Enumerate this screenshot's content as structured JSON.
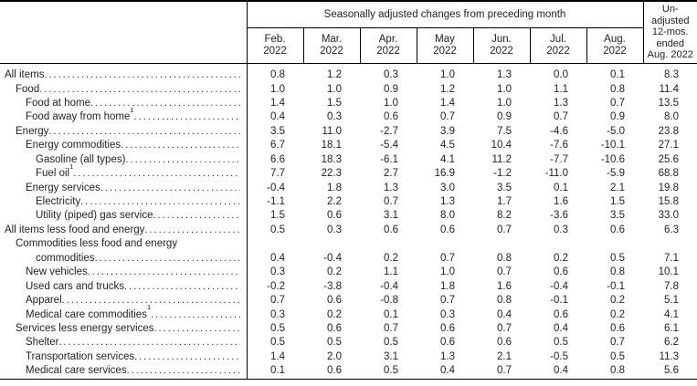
{
  "page": {
    "background": "#ffffff",
    "text_color": "#231f20",
    "border_color": "#000000"
  },
  "table": {
    "spanner_header": "Seasonally adjusted changes from preceding month",
    "month_columns": [
      {
        "month": "Feb.",
        "year": "2022"
      },
      {
        "month": "Mar.",
        "year": "2022"
      },
      {
        "month": "Apr.",
        "year": "2022"
      },
      {
        "month": "May",
        "year": "2022"
      },
      {
        "month": "Jun.",
        "year": "2022"
      },
      {
        "month": "Jul.",
        "year": "2022"
      },
      {
        "month": "Aug.",
        "year": "2022"
      }
    ],
    "unadjusted_header_lines": [
      "Un-",
      "adjusted",
      "12-mos.",
      "ended",
      "Aug. 2022"
    ],
    "rows": [
      {
        "label": "All items",
        "indent": 0,
        "values": [
          "0.8",
          "1.2",
          "0.3",
          "1.0",
          "1.3",
          "0.0",
          "0.1",
          "8.3"
        ]
      },
      {
        "label": "Food",
        "indent": 1,
        "values": [
          "1.0",
          "1.0",
          "0.9",
          "1.2",
          "1.0",
          "1.1",
          "0.8",
          "11.4"
        ]
      },
      {
        "label": "Food at home",
        "indent": 2,
        "values": [
          "1.4",
          "1.5",
          "1.0",
          "1.4",
          "1.0",
          "1.3",
          "0.7",
          "13.5"
        ]
      },
      {
        "label": "Food away from home",
        "footnote": "1",
        "indent": 2,
        "values": [
          "0.4",
          "0.3",
          "0.6",
          "0.7",
          "0.9",
          "0.7",
          "0.9",
          "8.0"
        ]
      },
      {
        "label": "Energy",
        "indent": 1,
        "values": [
          "3.5",
          "11.0",
          "-2.7",
          "3.9",
          "7.5",
          "-4.6",
          "-5.0",
          "23.8"
        ]
      },
      {
        "label": "Energy commodities",
        "indent": 2,
        "values": [
          "6.7",
          "18.1",
          "-5.4",
          "4.5",
          "10.4",
          "-7.6",
          "-10.1",
          "27.1"
        ]
      },
      {
        "label": "Gasoline (all types)",
        "indent": 3,
        "values": [
          "6.6",
          "18.3",
          "-6.1",
          "4.1",
          "11.2",
          "-7.7",
          "-10.6",
          "25.6"
        ]
      },
      {
        "label": "Fuel oil",
        "footnote": "1",
        "indent": 3,
        "values": [
          "7.7",
          "22.3",
          "2.7",
          "16.9",
          "-1.2",
          "-11.0",
          "-5.9",
          "68.8"
        ]
      },
      {
        "label": "Energy services",
        "indent": 2,
        "values": [
          "-0.4",
          "1.8",
          "1.3",
          "3.0",
          "3.5",
          "0.1",
          "2.1",
          "19.8"
        ]
      },
      {
        "label": "Electricity",
        "indent": 3,
        "values": [
          "-1.1",
          "2.2",
          "0.7",
          "1.3",
          "1.7",
          "1.6",
          "1.5",
          "15.8"
        ]
      },
      {
        "label": "Utility (piped) gas service",
        "indent": 3,
        "values": [
          "1.5",
          "0.6",
          "3.1",
          "8.0",
          "8.2",
          "-3.6",
          "3.5",
          "33.0"
        ]
      },
      {
        "label": "All items less food and energy",
        "indent": 0,
        "values": [
          "0.5",
          "0.3",
          "0.6",
          "0.6",
          "0.7",
          "0.3",
          "0.6",
          "6.3"
        ]
      },
      {
        "label": "Commodities less food and energy",
        "label_line2": "commodities",
        "indent": 1,
        "values": [
          "0.4",
          "-0.4",
          "0.2",
          "0.7",
          "0.8",
          "0.2",
          "0.5",
          "7.1"
        ]
      },
      {
        "label": "New vehicles",
        "indent": 2,
        "values": [
          "0.3",
          "0.2",
          "1.1",
          "1.0",
          "0.7",
          "0.6",
          "0.8",
          "10.1"
        ]
      },
      {
        "label": "Used cars and trucks",
        "indent": 2,
        "values": [
          "-0.2",
          "-3.8",
          "-0.4",
          "1.8",
          "1.6",
          "-0.4",
          "-0.1",
          "7.8"
        ]
      },
      {
        "label": "Apparel",
        "indent": 2,
        "values": [
          "0.7",
          "0.6",
          "-0.8",
          "0.7",
          "0.8",
          "-0.1",
          "0.2",
          "5.1"
        ]
      },
      {
        "label": "Medical care commodities",
        "footnote": "1",
        "indent": 2,
        "values": [
          "0.3",
          "0.2",
          "0.1",
          "0.3",
          "0.4",
          "0.6",
          "0.2",
          "4.1"
        ]
      },
      {
        "label": "Services less energy services",
        "indent": 1,
        "values": [
          "0.5",
          "0.6",
          "0.7",
          "0.6",
          "0.7",
          "0.4",
          "0.6",
          "6.1"
        ]
      },
      {
        "label": "Shelter",
        "indent": 2,
        "values": [
          "0.5",
          "0.5",
          "0.5",
          "0.6",
          "0.6",
          "0.5",
          "0.7",
          "6.2"
        ]
      },
      {
        "label": "Transportation services",
        "indent": 2,
        "values": [
          "1.4",
          "2.0",
          "3.1",
          "1.3",
          "2.1",
          "-0.5",
          "0.5",
          "11.3"
        ]
      },
      {
        "label": "Medical care services",
        "indent": 2,
        "values": [
          "0.1",
          "0.6",
          "0.5",
          "0.4",
          "0.7",
          "0.4",
          "0.8",
          "5.6"
        ]
      }
    ]
  }
}
